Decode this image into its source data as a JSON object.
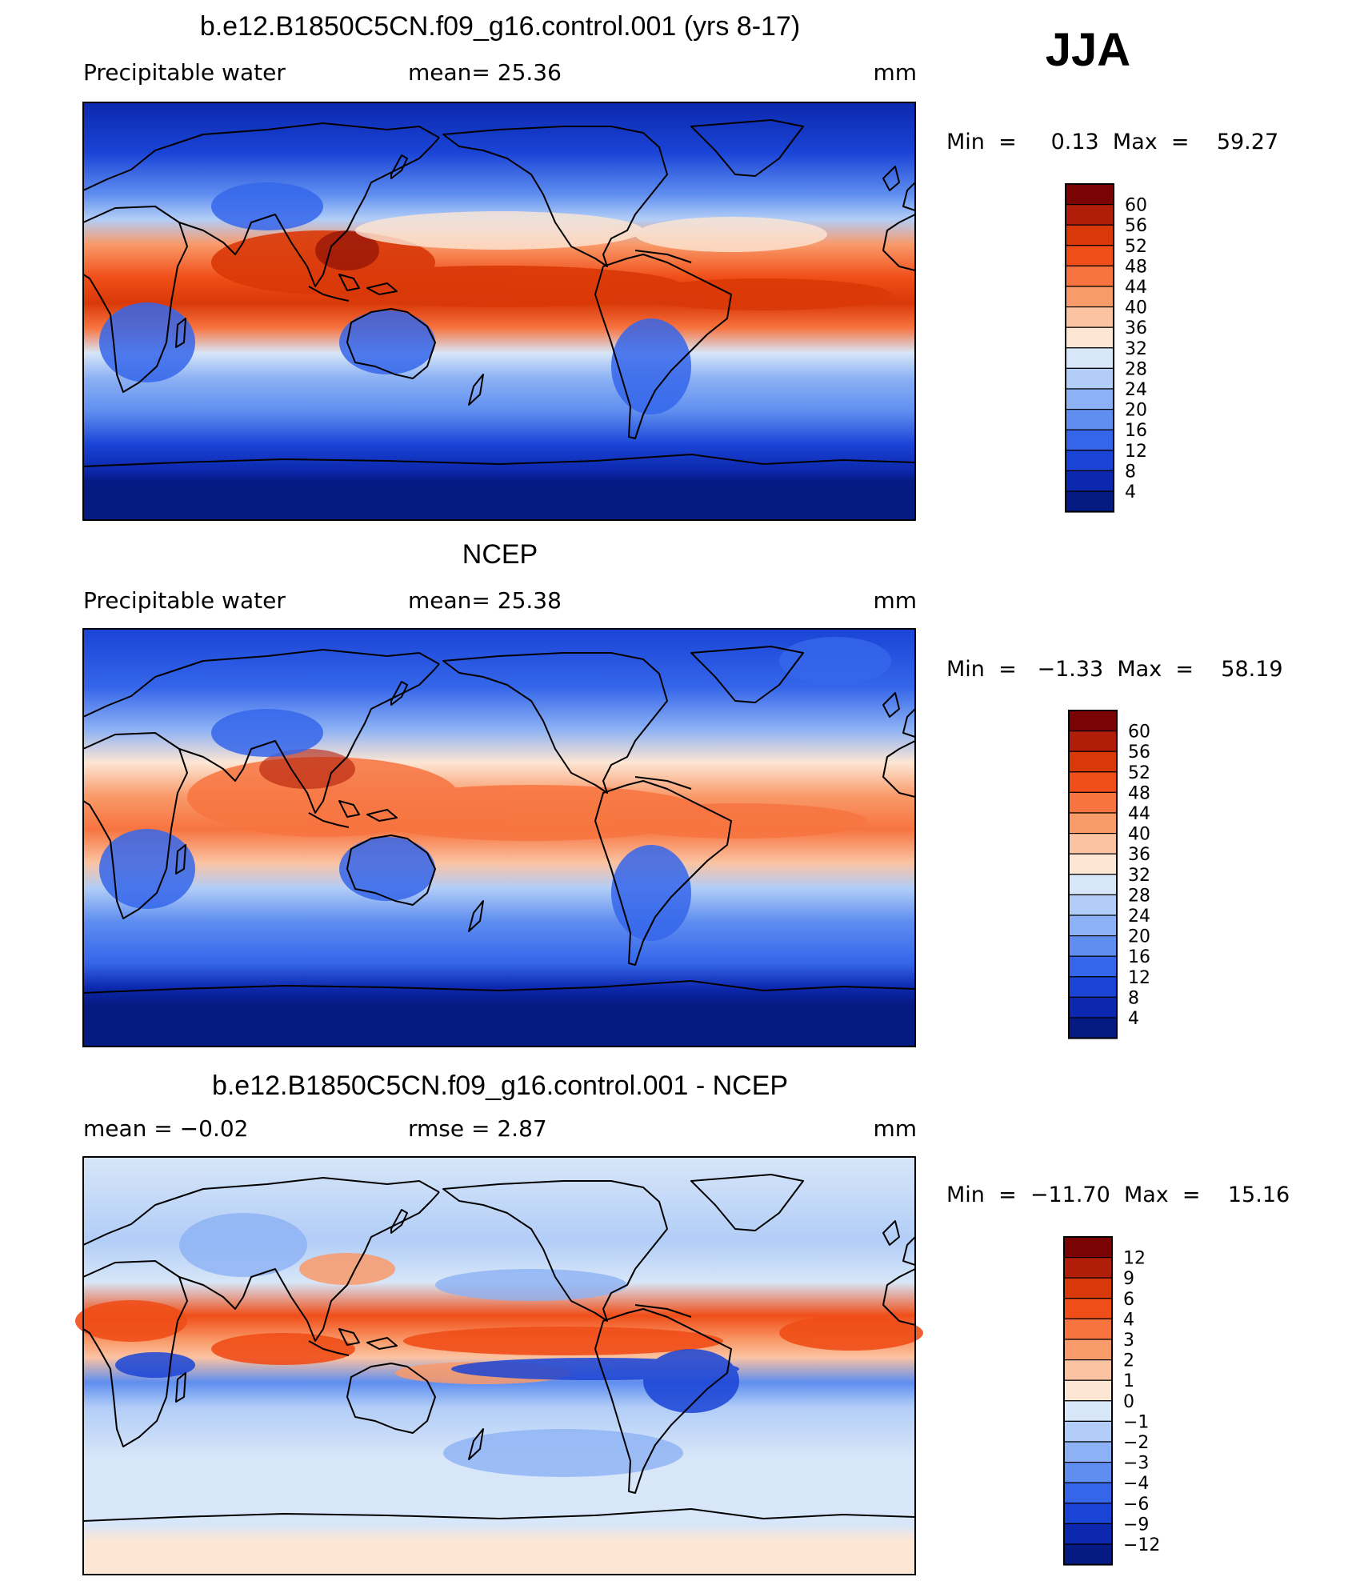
{
  "season": "JJA",
  "panels": [
    {
      "title": "b.e12.B1850C5CN.f09_g16.control.001 (yrs 8-17)",
      "left_label": "Precipitable  water",
      "center_label": "mean=   25.36",
      "units": "mm",
      "minmax": "Min  =     0.13  Max  =    59.27",
      "colorbar": {
        "labels": [
          "60",
          "56",
          "52",
          "48",
          "44",
          "40",
          "36",
          "32",
          "28",
          "24",
          "20",
          "16",
          "12",
          "8",
          "4"
        ],
        "colors": [
          "#7a0403",
          "#b01d08",
          "#d93808",
          "#f04e18",
          "#f77440",
          "#f99a6a",
          "#fbc3a2",
          "#fde6d4",
          "#d7e6f8",
          "#b2cdf7",
          "#8cb1f4",
          "#5f8ef0",
          "#3566ea",
          "#1a44d6",
          "#0c28ae",
          "#051a82"
        ]
      }
    },
    {
      "title": "NCEP",
      "left_label": "Precipitable  water",
      "center_label": "mean=   25.38",
      "units": "mm",
      "minmax": "Min  =   −1.33  Max  =    58.19",
      "colorbar": {
        "labels": [
          "60",
          "56",
          "52",
          "48",
          "44",
          "40",
          "36",
          "32",
          "28",
          "24",
          "20",
          "16",
          "12",
          "8",
          "4"
        ],
        "colors": [
          "#7a0403",
          "#b01d08",
          "#d93808",
          "#f04e18",
          "#f77440",
          "#f99a6a",
          "#fbc3a2",
          "#fde6d4",
          "#d7e6f8",
          "#b2cdf7",
          "#8cb1f4",
          "#5f8ef0",
          "#3566ea",
          "#1a44d6",
          "#0c28ae",
          "#051a82"
        ]
      }
    },
    {
      "title": "b.e12.B1850C5CN.f09_g16.control.001 - NCEP",
      "left_label": "mean  =    −0.02",
      "center_label": "rmse  =     2.87",
      "units": "mm",
      "minmax": "Min  =  −11.70  Max  =    15.16",
      "colorbar": {
        "labels": [
          "12",
          "9",
          "6",
          "4",
          "3",
          "2",
          "1",
          "0",
          "−1",
          "−2",
          "−3",
          "−4",
          "−6",
          "−9",
          "−12"
        ],
        "colors": [
          "#7a0403",
          "#b01d08",
          "#d93808",
          "#f04e18",
          "#f77440",
          "#f99a6a",
          "#fbc3a2",
          "#fde6d4",
          "#d7e6f8",
          "#b2cdf7",
          "#8cb1f4",
          "#5f8ef0",
          "#3566ea",
          "#1a44d6",
          "#0c28ae",
          "#051a82"
        ]
      }
    }
  ]
}
